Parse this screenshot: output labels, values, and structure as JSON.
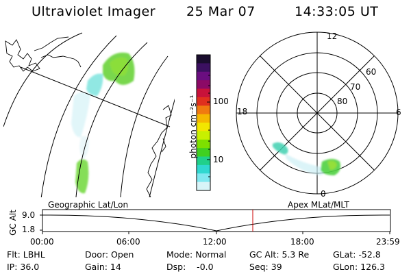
{
  "header": {
    "instrument": "Ultraviolet Imager",
    "date": "25 Mar 07",
    "time": "14:33:05 UT"
  },
  "colorbar": {
    "unit_label": "photon cm⁻²s⁻¹",
    "ticks": [
      "100",
      "10"
    ],
    "colors": [
      "#1a0d2e",
      "#3b1060",
      "#6a0e80",
      "#8c0a66",
      "#c8123a",
      "#e0301e",
      "#f07a10",
      "#f5b800",
      "#f2e600",
      "#c8f000",
      "#7ee000",
      "#40d020",
      "#20d08a",
      "#30d8d0",
      "#80e8f0",
      "#d8f4f8"
    ]
  },
  "polar": {
    "mlt_labels": {
      "top": "12",
      "right": "6",
      "bottom": "0",
      "left": "18"
    },
    "lat_labels": [
      "60",
      "70",
      "80"
    ]
  },
  "timeline": {
    "left_label": "Geographic Lat/Lon",
    "right_label": "Apex MLat/MLT",
    "axis_title": "GC Alt",
    "y_ticks": [
      "9.0",
      "1.8"
    ],
    "x_ticks": [
      "00:00",
      "06:00",
      "12:00",
      "18:00",
      "23:59"
    ],
    "current_time_marker_color": "#cc0000"
  },
  "status": {
    "flt": "Flt: LBHL",
    "ip": "IP: 36.0",
    "door": "Door: Open",
    "gain": "Gain: 14",
    "mode": "Mode: Normal",
    "dsp": "Dsp:    -0.0",
    "gc_alt": "GC Alt: 5.3 Re",
    "seq": "Seq: 39",
    "glat": "GLat: -52.8",
    "glon": "GLon: 126.3"
  }
}
